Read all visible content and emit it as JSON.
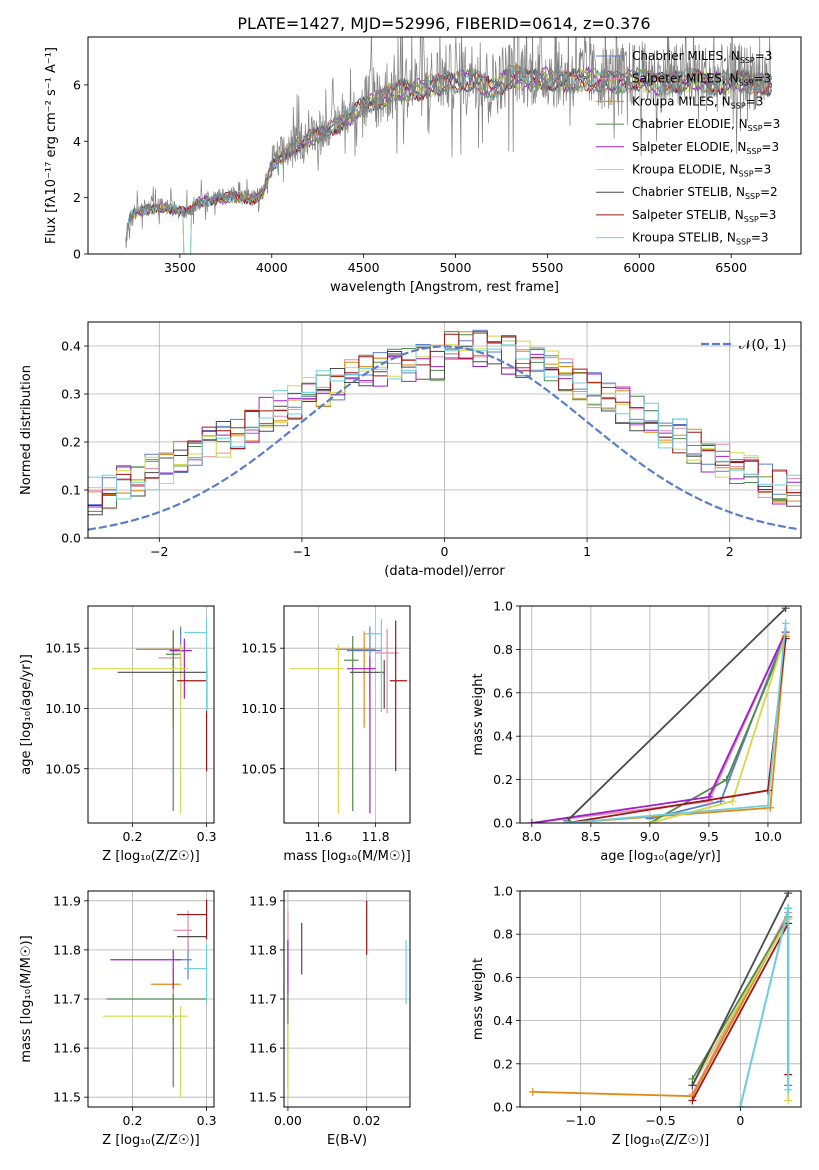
{
  "figure": {
    "title": "PLATE=1427, MJD=52996, FIBERID=0614, z=0.376"
  },
  "colors": {
    "Chabrier MILES": "#5a7fc8",
    "Salpeter MILES": "#e28ab0",
    "Kroupa MILES": "#e08a14",
    "Chabrier ELODIE": "#4f8a4f",
    "Salpeter ELODIE": "#a020c8",
    "Kroupa ELODIE": "#d4d84a",
    "Chabrier STELIB": "#4a4a4a",
    "Salpeter STELIB": "#a01414",
    "Kroupa STELIB": "#6ed0e0",
    "data": "#808080",
    "normal": "#5a7fc8"
  },
  "chart_data": [
    {
      "id": "spectrum",
      "type": "line",
      "xlabel": "wavelength [Angstrom, rest frame]",
      "ylabel": "Flux [fλ10⁻¹⁷ erg cm⁻² s⁻¹ A⁻¹]",
      "xlim": [
        3000,
        6880
      ],
      "ylim": [
        0,
        7.7
      ],
      "xticks": [
        3500,
        4000,
        4500,
        5000,
        5500,
        6000,
        6500
      ],
      "yticks": [
        0,
        2,
        4,
        6
      ],
      "legend_position": "upper right",
      "series_labels": [
        "Chabrier MILES, N_SSP=3",
        "Salpeter MILES, N_SSP=3",
        "Kroupa MILES, N_SSP=3",
        "Chabrier ELODIE, N_SSP=3",
        "Salpeter ELODIE, N_SSP=3",
        "Kroupa ELODIE, N_SSP=3",
        "Chabrier STELIB, N_SSP=2",
        "Salpeter STELIB, N_SSP=3",
        "Kroupa STELIB, N_SSP=3"
      ],
      "data_continuum": [
        [
          3200,
          0
        ],
        [
          3220,
          1.2
        ],
        [
          3240,
          1.45
        ],
        [
          3300,
          1.6
        ],
        [
          3400,
          1.7
        ],
        [
          3480,
          1.6
        ],
        [
          3550,
          1.55
        ],
        [
          3600,
          1.9
        ],
        [
          3700,
          2.0
        ],
        [
          3800,
          2.1
        ],
        [
          3900,
          2.0
        ],
        [
          3950,
          2.2
        ],
        [
          4000,
          3.2
        ],
        [
          4100,
          3.8
        ],
        [
          4200,
          4.2
        ],
        [
          4300,
          4.5
        ],
        [
          4400,
          4.9
        ],
        [
          4500,
          5.4
        ],
        [
          4600,
          5.7
        ],
        [
          4700,
          6.0
        ],
        [
          4800,
          6.0
        ],
        [
          4900,
          6.2
        ],
        [
          5000,
          6.3
        ],
        [
          5100,
          6.4
        ],
        [
          5200,
          6.0
        ],
        [
          5300,
          6.5
        ],
        [
          5400,
          6.4
        ],
        [
          5500,
          6.4
        ],
        [
          5600,
          6.3
        ],
        [
          5700,
          6.4
        ],
        [
          5800,
          6.3
        ],
        [
          5900,
          6.3
        ],
        [
          6000,
          6.4
        ],
        [
          6100,
          6.2
        ],
        [
          6200,
          6.3
        ],
        [
          6300,
          6.4
        ],
        [
          6400,
          6.2
        ],
        [
          6500,
          6.3
        ],
        [
          6600,
          6.3
        ],
        [
          6720,
          6.2
        ]
      ]
    },
    {
      "id": "residuals",
      "type": "line",
      "xlabel": "(data-model)/error",
      "ylabel": "Normed distribution",
      "xlim": [
        -2.5,
        2.5
      ],
      "ylim": [
        0,
        0.45
      ],
      "xticks": [
        -2,
        -1,
        0,
        1,
        2
      ],
      "yticks": [
        0.0,
        0.1,
        0.2,
        0.3,
        0.4
      ],
      "legend": "𝒩(0, 1)",
      "legend_position": "upper right",
      "grid": true
    },
    {
      "id": "age-vs-Z",
      "type": "scatter",
      "xlabel": "Z [log₁₀(Z/Z☉)]",
      "ylabel": "age  [log₁₀(age/yr)]",
      "xlim": [
        0.14,
        0.31
      ],
      "ylim": [
        10.005,
        10.185
      ],
      "xticks": [
        0.2,
        0.3
      ],
      "yticks": [
        10.05,
        10.1,
        10.15
      ],
      "points": [
        {
          "model": "Chabrier MILES",
          "x": 0.265,
          "y": 10.148,
          "xerr": [
            0.015,
            0.01
          ],
          "yerr": [
            0.04,
            0.02
          ]
        },
        {
          "model": "Salpeter MILES",
          "x": 0.255,
          "y": 10.142,
          "xerr": [
            0.02,
            0.01
          ],
          "yerr": [
            0.05,
            0.02
          ]
        },
        {
          "model": "Kroupa MILES",
          "x": 0.255,
          "y": 10.149,
          "xerr": [
            0.05,
            0.01
          ],
          "yerr": [
            0.065,
            0.015
          ]
        },
        {
          "model": "Chabrier ELODIE",
          "x": 0.255,
          "y": 10.145,
          "xerr": [
            0.01,
            0.01
          ],
          "yerr": [
            0.13,
            0.02
          ]
        },
        {
          "model": "Salpeter ELODIE",
          "x": 0.27,
          "y": 10.148,
          "xerr": [
            0.02,
            0.01
          ],
          "yerr": [
            0.04,
            0.01
          ]
        },
        {
          "model": "Kroupa ELODIE",
          "x": 0.265,
          "y": 10.133,
          "xerr": [
            0.12,
            0.01
          ],
          "yerr": [
            0.12,
            0.02
          ]
        },
        {
          "model": "Chabrier STELIB",
          "x": 0.3,
          "y": 10.13,
          "xerr": [
            0.12,
            0.0
          ],
          "yerr": [
            0.03,
            0.01
          ]
        },
        {
          "model": "Salpeter STELIB",
          "x": 0.3,
          "y": 10.123,
          "xerr": [
            0.04,
            0.0
          ],
          "yerr": [
            0.075,
            0.01
          ]
        },
        {
          "model": "Kroupa STELIB",
          "x": 0.3,
          "y": 10.163,
          "xerr": [
            0.03,
            0.0
          ],
          "yerr": [
            0.065,
            0.012
          ]
        }
      ]
    },
    {
      "id": "age-vs-mass",
      "type": "scatter",
      "xlabel": "mass [log₁₀(M/M☉)]",
      "ylabel": "",
      "xlim": [
        11.48,
        11.92
      ],
      "ylim": [
        10.005,
        10.185
      ],
      "xticks": [
        11.6,
        11.8
      ],
      "yticks": [
        10.05,
        10.1,
        10.15
      ],
      "points": [
        {
          "model": "Chabrier MILES",
          "x": 11.78,
          "y": 10.148,
          "xerr": [
            0.08,
            0.04
          ],
          "yerr": [
            0.04,
            0.02
          ]
        },
        {
          "model": "Salpeter MILES",
          "x": 11.84,
          "y": 10.146,
          "xerr": [
            0.04,
            0.04
          ],
          "yerr": [
            0.05,
            0.02
          ]
        },
        {
          "model": "Kroupa MILES",
          "x": 11.76,
          "y": 10.149,
          "xerr": [
            0.1,
            0.04
          ],
          "yerr": [
            0.065,
            0.015
          ]
        },
        {
          "model": "Chabrier ELODIE",
          "x": 11.72,
          "y": 10.14,
          "xerr": [
            0.03,
            0.02
          ],
          "yerr": [
            0.125,
            0.02
          ]
        },
        {
          "model": "Salpeter ELODIE",
          "x": 11.78,
          "y": 10.133,
          "xerr": [
            0.08,
            0.02
          ],
          "yerr": [
            0.12,
            0.01
          ]
        },
        {
          "model": "Kroupa ELODIE",
          "x": 11.67,
          "y": 10.133,
          "xerr": [
            0.17,
            0.02
          ],
          "yerr": [
            0.12,
            0.02
          ]
        },
        {
          "model": "Chabrier STELIB",
          "x": 11.83,
          "y": 10.13,
          "xerr": [
            0.12,
            0.0
          ],
          "yerr": [
            0.03,
            0.01
          ]
        },
        {
          "model": "Salpeter STELIB",
          "x": 11.87,
          "y": 10.123,
          "xerr": [
            0.02,
            0.04
          ],
          "yerr": [
            0.075,
            0.05
          ]
        },
        {
          "model": "Kroupa STELIB",
          "x": 11.82,
          "y": 10.162,
          "xerr": [
            0.06,
            0.0
          ],
          "yerr": [
            0.065,
            0.012
          ]
        }
      ]
    },
    {
      "id": "weight-vs-age",
      "type": "line",
      "xlabel": "age  [log₁₀(age/yr)]",
      "ylabel": "mass weight",
      "xlim": [
        7.9,
        10.28
      ],
      "ylim": [
        0,
        1
      ],
      "xticks": [
        8.0,
        8.5,
        9.0,
        9.5,
        10.0
      ],
      "yticks": [
        0.0,
        0.2,
        0.4,
        0.6,
        0.8,
        1.0
      ],
      "grid": true,
      "series": [
        {
          "name": "Chabrier MILES",
          "x": [
            9.0,
            9.6,
            10.15
          ],
          "y": [
            0.02,
            0.1,
            0.88
          ]
        },
        {
          "name": "Salpeter MILES",
          "x": [
            8.0,
            9.5,
            10.15
          ],
          "y": [
            0.0,
            0.1,
            0.88
          ]
        },
        {
          "name": "Kroupa MILES",
          "x": [
            8.3,
            10.02,
            10.15
          ],
          "y": [
            0.0,
            0.07,
            0.86
          ]
        },
        {
          "name": "Chabrier ELODIE",
          "x": [
            9.0,
            9.65,
            10.15
          ],
          "y": [
            0.0,
            0.2,
            0.85
          ]
        },
        {
          "name": "Salpeter ELODIE",
          "x": [
            8.0,
            9.5,
            10.15
          ],
          "y": [
            0.0,
            0.12,
            0.88
          ]
        },
        {
          "name": "Kroupa ELODIE",
          "x": [
            9.0,
            9.7,
            10.15
          ],
          "y": [
            0.0,
            0.1,
            0.87
          ]
        },
        {
          "name": "Chabrier STELIB",
          "x": [
            8.3,
            10.15
          ],
          "y": [
            0.01,
            0.99
          ]
        },
        {
          "name": "Salpeter STELIB",
          "x": [
            8.3,
            10.0,
            10.15
          ],
          "y": [
            0.0,
            0.15,
            0.85
          ]
        },
        {
          "name": "Kroupa STELIB",
          "x": [
            8.3,
            10.0,
            10.15
          ],
          "y": [
            0.0,
            0.08,
            0.92
          ]
        }
      ]
    },
    {
      "id": "mass-vs-Z",
      "type": "scatter",
      "xlabel": "Z [log₁₀(Z/Z☉)]",
      "ylabel": "mass [log₁₀(M/M☉)]",
      "xlim": [
        0.14,
        0.31
      ],
      "ylim": [
        11.48,
        11.92
      ],
      "xticks": [
        0.2,
        0.3
      ],
      "yticks": [
        11.5,
        11.6,
        11.7,
        11.8,
        11.9
      ],
      "points": [
        {
          "model": "Chabrier MILES",
          "x": 0.275,
          "y": 11.78,
          "xerr": [
            0.015,
            0.005
          ],
          "yerr": [
            0.04,
            0.04
          ]
        },
        {
          "model": "Salpeter MILES",
          "x": 0.275,
          "y": 11.84,
          "xerr": [
            0.02,
            0.005
          ],
          "yerr": [
            0.04,
            0.04
          ]
        },
        {
          "model": "Kroupa MILES",
          "x": 0.255,
          "y": 11.73,
          "xerr": [
            0.03,
            0.01
          ],
          "yerr": [
            0.08,
            0.03
          ]
        },
        {
          "model": "Chabrier ELODIE",
          "x": 0.255,
          "y": 11.7,
          "xerr": [
            0.09,
            0.045
          ],
          "yerr": [
            0.18,
            0.01
          ]
        },
        {
          "model": "Salpeter ELODIE",
          "x": 0.255,
          "y": 11.78,
          "xerr": [
            0.085,
            0.01
          ],
          "yerr": [
            0.06,
            0.02
          ]
        },
        {
          "model": "Kroupa ELODIE",
          "x": 0.265,
          "y": 11.665,
          "xerr": [
            0.105,
            0.01
          ],
          "yerr": [
            0.165,
            0.02
          ]
        },
        {
          "model": "Chabrier STELIB",
          "x": 0.28,
          "y": 11.827,
          "xerr": [
            0.02,
            0.02
          ],
          "yerr": [
            0.0,
            0.0
          ]
        },
        {
          "model": "Salpeter STELIB",
          "x": 0.3,
          "y": 11.872,
          "xerr": [
            0.04,
            0.0
          ],
          "yerr": [
            0.05,
            0.03
          ]
        },
        {
          "model": "Kroupa STELIB",
          "x": 0.3,
          "y": 11.762,
          "xerr": [
            0.03,
            0.0
          ],
          "yerr": [
            0.07,
            0.05
          ]
        }
      ]
    },
    {
      "id": "mass-vs-EBV",
      "type": "scatter",
      "xlabel": "E(B-V)",
      "ylabel": "",
      "xlim": [
        -0.001,
        0.031
      ],
      "ylim": [
        11.48,
        11.92
      ],
      "xticks": [
        0.0,
        0.02
      ],
      "yticks": [
        11.5,
        11.6,
        11.7,
        11.8,
        11.9
      ],
      "points": [
        {
          "model": "Chabrier MILES",
          "x": 0.0,
          "y": 11.78,
          "yerr": [
            0.04,
            0.04
          ]
        },
        {
          "model": "Salpeter MILES",
          "x": 0.0,
          "y": 11.84,
          "yerr": [
            0.04,
            0.04
          ]
        },
        {
          "model": "Kroupa MILES",
          "x": 0.0,
          "y": 11.73,
          "yerr": [
            0.08,
            0.03
          ]
        },
        {
          "model": "Chabrier ELODIE",
          "x": 0.0,
          "y": 11.7,
          "yerr": [
            0.18,
            0.01
          ]
        },
        {
          "model": "Salpeter ELODIE",
          "x": 0.0,
          "y": 11.78,
          "yerr": [
            0.07,
            0.04
          ]
        },
        {
          "model": "Kroupa ELODIE",
          "x": 0.0,
          "y": 11.62,
          "yerr": [
            0.12,
            0.03
          ]
        },
        {
          "model": "Chabrier STELIB",
          "x": 0.0035,
          "y": 11.8,
          "yerr": [
            0.05,
            0.055
          ]
        },
        {
          "model": "Salpeter STELIB",
          "x": 0.02,
          "y": 11.85,
          "yerr": [
            0.06,
            0.05
          ]
        },
        {
          "model": "Kroupa STELIB",
          "x": 0.03,
          "y": 11.76,
          "yerr": [
            0.07,
            0.06
          ]
        }
      ]
    },
    {
      "id": "weight-vs-Z",
      "type": "line",
      "xlabel": "Z [log₁₀(Z/Z☉)]",
      "ylabel": "mass weight",
      "xlim": [
        -1.38,
        0.38
      ],
      "ylim": [
        0,
        1
      ],
      "xticks": [
        -1.0,
        -0.5,
        0.0
      ],
      "yticks": [
        0.0,
        0.2,
        0.4,
        0.6,
        0.8,
        1.0
      ],
      "grid": true,
      "series": [
        {
          "name": "Chabrier MILES",
          "x": [
            0.0,
            0.3,
            0.3
          ],
          "y": [
            0.0,
            0.92,
            0.1
          ]
        },
        {
          "name": "Salpeter MILES",
          "x": [
            -0.3,
            0.3
          ],
          "y": [
            0.06,
            0.9
          ]
        },
        {
          "name": "Kroupa MILES",
          "x": [
            -1.3,
            -0.3,
            0.3
          ],
          "y": [
            0.07,
            0.05,
            0.88
          ]
        },
        {
          "name": "Chabrier ELODIE",
          "x": [
            -0.3,
            0.3
          ],
          "y": [
            0.13,
            0.88
          ]
        },
        {
          "name": "Salpeter ELODIE",
          "x": [
            -0.3,
            0.3
          ],
          "y": [
            0.1,
            0.87
          ]
        },
        {
          "name": "Kroupa ELODIE",
          "x": [
            -0.3,
            0.3,
            0.3
          ],
          "y": [
            0.1,
            0.87,
            0.03
          ]
        },
        {
          "name": "Chabrier STELIB",
          "x": [
            -0.3,
            0.3
          ],
          "y": [
            0.1,
            0.99
          ]
        },
        {
          "name": "Salpeter STELIB",
          "x": [
            -0.3,
            0.3,
            0.3
          ],
          "y": [
            0.03,
            0.85,
            0.15
          ]
        },
        {
          "name": "Kroupa STELIB",
          "x": [
            0.0,
            0.3,
            0.3
          ],
          "y": [
            0.0,
            0.92,
            0.08
          ]
        }
      ]
    }
  ]
}
